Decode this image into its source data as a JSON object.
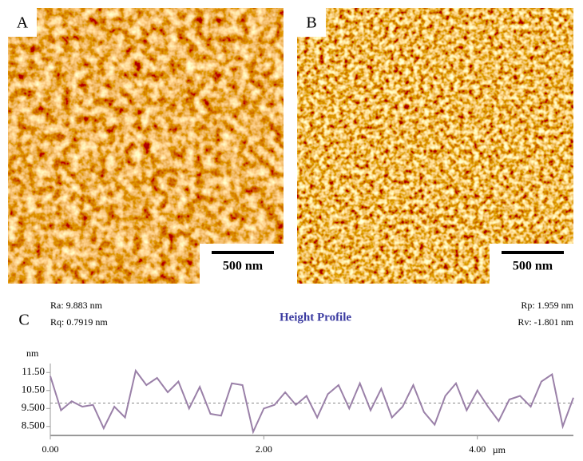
{
  "panels": [
    {
      "label": "A",
      "scale_bar": "500 nm"
    },
    {
      "label": "B",
      "scale_bar": "500 nm"
    }
  ],
  "chart_data": {
    "type": "line",
    "panel_label": "C",
    "title": "Height Profile",
    "stats": [
      "Ra: 9.883 nm",
      "Rq: 0.7919 nm",
      "Rp: 1.959 nm",
      "Rv: -1.801 nm"
    ],
    "y_unit": "nm",
    "x_unit": "µm",
    "x": [
      0.0,
      0.1,
      0.2,
      0.3,
      0.4,
      0.5,
      0.6,
      0.7,
      0.8,
      0.9,
      1.0,
      1.1,
      1.2,
      1.3,
      1.4,
      1.5,
      1.6,
      1.7,
      1.8,
      1.9,
      2.0,
      2.1,
      2.2,
      2.3,
      2.4,
      2.5,
      2.6,
      2.7,
      2.8,
      2.9,
      3.0,
      3.1,
      3.2,
      3.3,
      3.4,
      3.5,
      3.6,
      3.7,
      3.8,
      3.9,
      4.0,
      4.1,
      4.2,
      4.3,
      4.4,
      4.5,
      4.6,
      4.7,
      4.8,
      4.9
    ],
    "series": [
      {
        "color": "#9a80a8",
        "values": [
          11.3,
          9.4,
          9.9,
          9.6,
          9.7,
          8.4,
          9.6,
          9.0,
          11.6,
          10.8,
          11.2,
          10.4,
          11.0,
          9.5,
          10.7,
          9.2,
          9.1,
          10.9,
          10.8,
          8.2,
          9.5,
          9.7,
          10.4,
          9.7,
          10.2,
          9.0,
          10.3,
          10.8,
          9.5,
          10.9,
          9.4,
          10.6,
          9.0,
          9.6,
          10.8,
          9.3,
          8.6,
          10.2,
          10.9,
          9.4,
          10.5,
          9.6,
          8.8,
          10.0,
          10.2,
          9.6,
          11.0,
          11.4,
          8.5,
          10.1
        ]
      }
    ],
    "reference_line": 9.8,
    "xlim": [
      0,
      4.9
    ],
    "ylim": [
      8.0,
      12.0
    ],
    "xticks": [
      {
        "value": 0,
        "label": "0.00"
      },
      {
        "value": 2,
        "label": "2.00"
      },
      {
        "value": 4,
        "label": "4.00"
      }
    ],
    "yticks": [
      {
        "value": 8.5,
        "label": "8.500"
      },
      {
        "value": 9.5,
        "label": "9.500"
      },
      {
        "value": 10.5,
        "label": "10.50"
      },
      {
        "value": 11.5,
        "label": "11.50"
      }
    ]
  }
}
